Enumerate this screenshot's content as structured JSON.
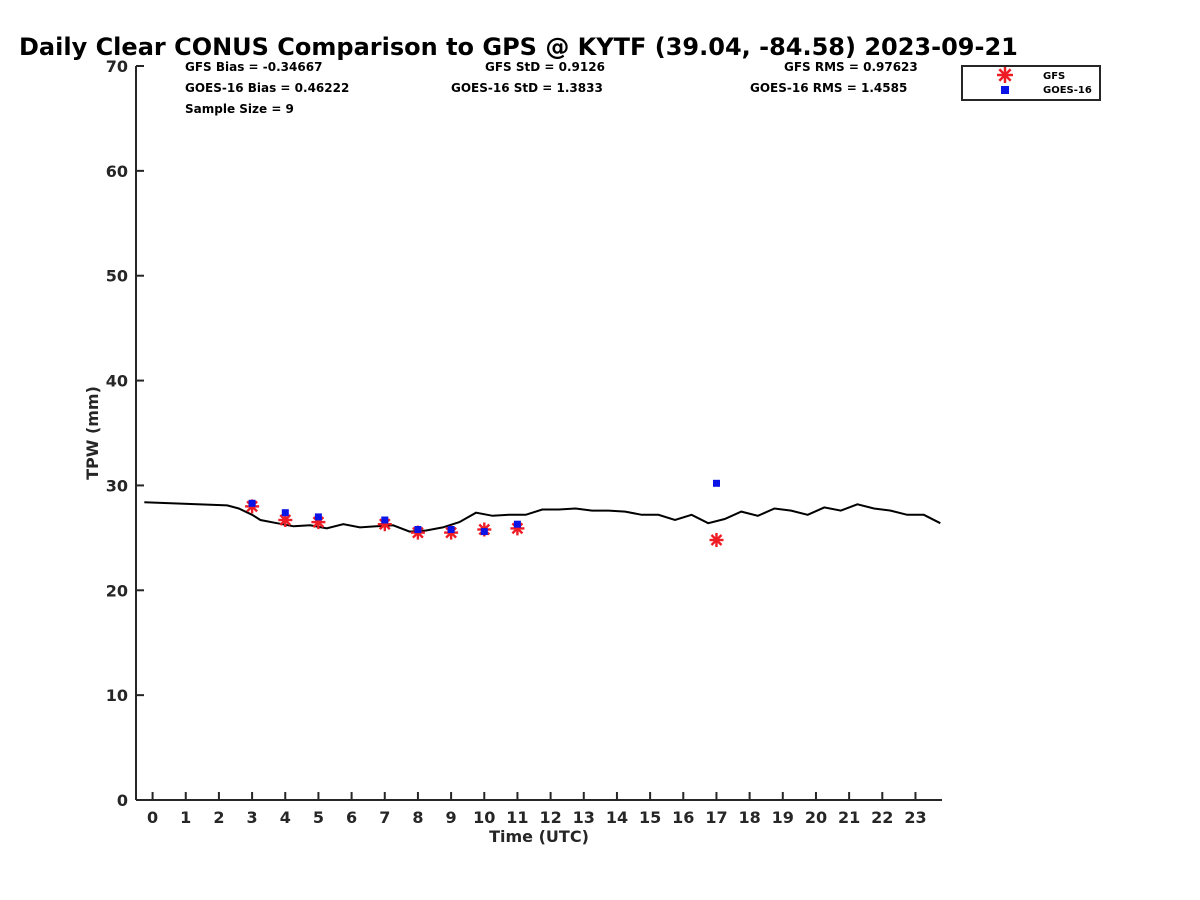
{
  "chart_data": {
    "type": "scatter",
    "title": "Daily Clear CONUS Comparison to GPS @ KYTF (39.04, -84.58) 2023-09-21",
    "xlabel": "Time (UTC)",
    "ylabel": "TPW (mm)",
    "xlim": [
      -0.5,
      23.8
    ],
    "ylim": [
      0,
      70
    ],
    "xticks": [
      "0",
      "1",
      "2",
      "3",
      "4",
      "5",
      "6",
      "7",
      "8",
      "9",
      "10",
      "11",
      "12",
      "13",
      "14",
      "15",
      "16",
      "17",
      "18",
      "19",
      "20",
      "21",
      "22",
      "23"
    ],
    "yticks": [
      "0",
      "10",
      "20",
      "30",
      "40",
      "50",
      "60",
      "70"
    ],
    "grid": false,
    "legend_position": "top-right",
    "stats": {
      "gfs_bias": "GFS Bias = -0.34667",
      "goes_bias": "GOES-16 Bias = 0.46222",
      "sample_size": "Sample Size = 9",
      "gfs_std": "GFS StD = 0.9126",
      "goes_std": "GOES-16 StD = 1.3833",
      "gfs_rms": "GFS RMS = 0.97623",
      "goes_rms": "GOES-16 RMS = 1.4585"
    },
    "series": [
      {
        "type": "line",
        "color": "#000000",
        "x": [
          -0.25,
          2.25,
          2.6,
          3.0,
          3.25,
          3.75,
          4.25,
          4.75,
          5.25,
          5.75,
          6.25,
          6.75,
          7.25,
          7.75,
          8.25,
          8.75,
          9.25,
          9.75,
          10.25,
          10.75,
          11.25,
          11.75,
          12.25,
          12.75,
          13.25,
          13.75,
          14.25,
          14.75,
          15.25,
          15.75,
          16.25,
          16.75,
          17.25,
          17.75,
          18.25,
          18.75,
          19.25,
          19.75,
          20.25,
          20.75,
          21.25,
          21.75,
          22.25,
          22.75,
          23.25,
          23.75
        ],
        "y": [
          28.4,
          28.1,
          27.8,
          27.2,
          26.7,
          26.4,
          26.1,
          26.2,
          25.9,
          26.3,
          26.0,
          26.1,
          26.2,
          25.6,
          25.7,
          26.0,
          26.5,
          27.4,
          27.1,
          27.2,
          27.2,
          27.7,
          27.7,
          27.8,
          27.6,
          27.6,
          27.5,
          27.2,
          27.2,
          26.7,
          27.2,
          26.4,
          26.8,
          27.5,
          27.1,
          27.8,
          27.6,
          27.2,
          27.9,
          27.6,
          28.2,
          27.8,
          27.6,
          27.2,
          27.2,
          26.4
        ]
      },
      {
        "name": "GFS",
        "marker": "asterisk",
        "color": "#ee1c24",
        "x": [
          3.0,
          4.0,
          5.0,
          7.0,
          8.0,
          9.0,
          10.0,
          11.0,
          17.0
        ],
        "y": [
          28.0,
          26.7,
          26.5,
          26.3,
          25.5,
          25.5,
          25.8,
          25.9,
          24.8
        ]
      },
      {
        "name": "GOES-16",
        "marker": "square",
        "color": "#0a14e6",
        "x": [
          3.0,
          4.0,
          5.0,
          7.0,
          8.0,
          9.0,
          10.0,
          11.0,
          17.0
        ],
        "y": [
          28.3,
          27.4,
          27.0,
          26.7,
          25.8,
          25.8,
          25.6,
          26.3,
          30.2
        ]
      }
    ]
  }
}
